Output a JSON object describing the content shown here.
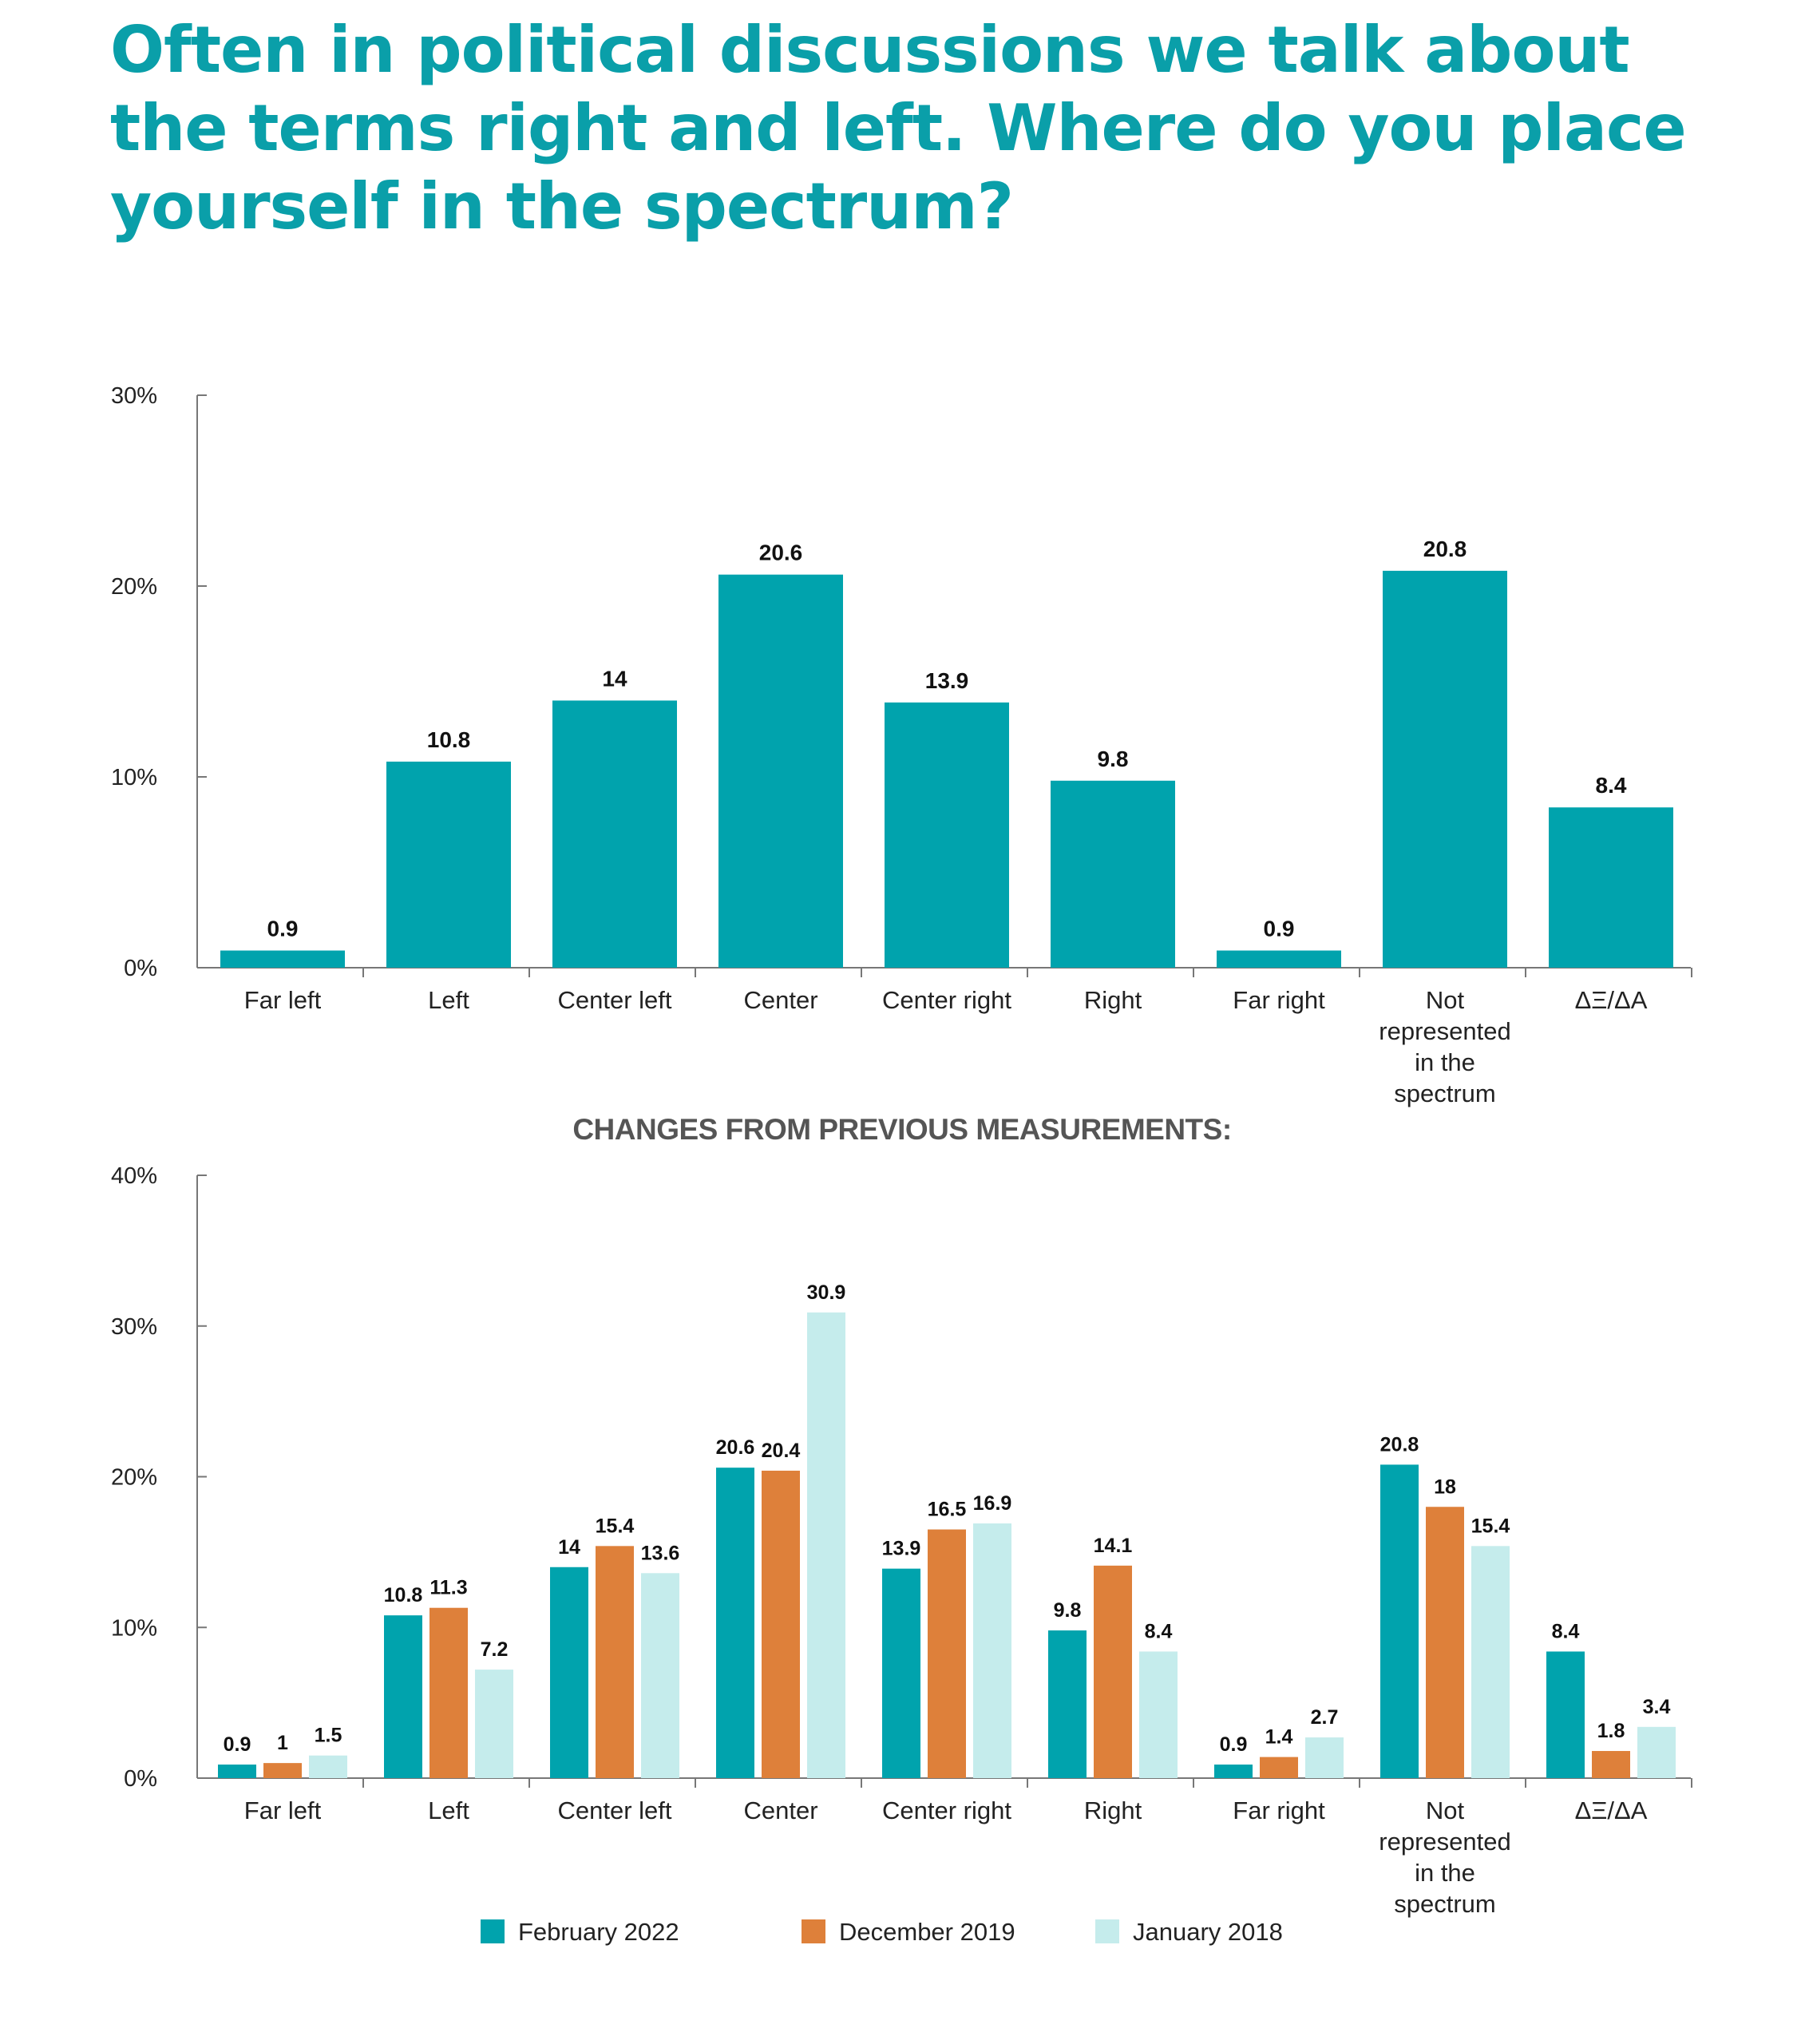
{
  "title": "Often in political discussions we talk about the terms right and left. Where do you place yourself in the spectrum?",
  "colors": {
    "title": "#0a9fa9",
    "feb2022": "#00a3ad",
    "dec2019": "#de803a",
    "jan2018": "#c5ecec",
    "axis": "#777777"
  },
  "chart_data": [
    {
      "type": "bar",
      "title": "",
      "categories": [
        "Far left",
        "Left",
        "Center left",
        "Center",
        "Center right",
        "Right",
        "Far right",
        "Not represented in the spectrum",
        "ΔΞ/ΔΑ"
      ],
      "category_lines": [
        [
          "Far left"
        ],
        [
          "Left"
        ],
        [
          "Center left"
        ],
        [
          "Center"
        ],
        [
          "Center right"
        ],
        [
          "Right"
        ],
        [
          "Far right"
        ],
        [
          "Not",
          "represented",
          "in the",
          "spectrum"
        ],
        [
          "ΔΞ/ΔΑ"
        ]
      ],
      "values": [
        0.9,
        10.8,
        14,
        20.6,
        13.9,
        9.8,
        0.9,
        20.8,
        8.4
      ],
      "yticks": [
        "0%",
        "10%",
        "20%",
        "30%"
      ],
      "ylim": [
        0,
        30
      ],
      "xlabel": "",
      "ylabel": "",
      "grid": false
    },
    {
      "type": "bar",
      "title": "CHANGES FROM PREVIOUS MEASUREMENTS:",
      "categories": [
        "Far left",
        "Left",
        "Center left",
        "Center",
        "Center right",
        "Right",
        "Far right",
        "Not represented in the spectrum",
        "ΔΞ/ΔΑ"
      ],
      "category_lines": [
        [
          "Far left"
        ],
        [
          "Left"
        ],
        [
          "Center left"
        ],
        [
          "Center"
        ],
        [
          "Center right"
        ],
        [
          "Right"
        ],
        [
          "Far right"
        ],
        [
          "Not",
          "represented",
          "in the",
          "spectrum"
        ],
        [
          "ΔΞ/ΔΑ"
        ]
      ],
      "series": [
        {
          "name": "February 2022",
          "color": "#00a3ad",
          "values": [
            0.9,
            10.8,
            14,
            20.6,
            13.9,
            9.8,
            0.9,
            20.8,
            8.4
          ]
        },
        {
          "name": "December 2019",
          "color": "#de803a",
          "values": [
            1,
            11.3,
            15.4,
            20.4,
            16.5,
            14.1,
            1.4,
            18,
            1.8
          ]
        },
        {
          "name": "January 2018",
          "color": "#c5ecec",
          "values": [
            1.5,
            7.2,
            13.6,
            30.9,
            16.9,
            8.4,
            2.7,
            15.4,
            3.4
          ]
        }
      ],
      "yticks": [
        "0%",
        "10%",
        "20%",
        "30%",
        "40%"
      ],
      "ylim": [
        0,
        40
      ],
      "legend": "bottom",
      "xlabel": "",
      "ylabel": "",
      "grid": false
    }
  ]
}
